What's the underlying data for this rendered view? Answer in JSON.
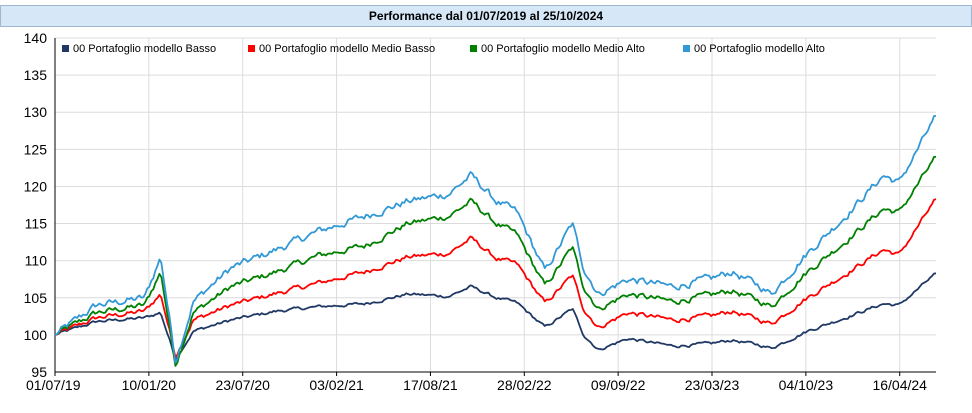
{
  "header": {
    "title": "Performance dal 01/07/2019 al 25/10/2024"
  },
  "chart_data": {
    "type": "line",
    "title": "Performance dal 01/07/2019 al 25/10/2024",
    "xlabel": "",
    "ylabel": "",
    "ylim": [
      95,
      140
    ],
    "yticks": [
      95,
      100,
      105,
      110,
      115,
      120,
      125,
      130,
      135,
      140
    ],
    "xtick_labels": [
      "01/07/19",
      "10/01/20",
      "23/07/20",
      "03/02/21",
      "17/08/21",
      "28/02/22",
      "09/09/22",
      "23/03/23",
      "04/10/23",
      "16/04/24"
    ],
    "grid": true,
    "legend_position": "top-left",
    "x": [
      "2019-07-01",
      "2019-10-01",
      "2020-01-15",
      "2020-02-19",
      "2020-03-23",
      "2020-05-01",
      "2020-07-23",
      "2020-11-01",
      "2021-02-03",
      "2021-05-15",
      "2021-08-17",
      "2021-11-15",
      "2022-01-04",
      "2022-02-28",
      "2022-04-15",
      "2022-06-16",
      "2022-08-15",
      "2022-09-09",
      "2022-10-12",
      "2022-12-15",
      "2023-03-23",
      "2023-06-15",
      "2023-08-01",
      "2023-10-04",
      "2023-10-27",
      "2024-01-15",
      "2024-04-16",
      "2024-07-01",
      "2024-08-05",
      "2024-10-25"
    ],
    "series": [
      {
        "name": "00 Portafoglio modello Basso",
        "color": "#1f3864",
        "values": [
          100,
          101.8,
          102.3,
          103.0,
          96.8,
          100.5,
          102.0,
          103.2,
          103.8,
          104.2,
          105.5,
          105.2,
          106.5,
          105.0,
          104.3,
          101.0,
          103.5,
          100.0,
          98.0,
          99.5,
          98.5,
          98.8,
          99.3,
          98.6,
          98.2,
          100.5,
          102.5,
          104.2,
          104.0,
          108.3
        ]
      },
      {
        "name": "00 Portafoglio modello Medio Basso",
        "color": "#ff0000",
        "values": [
          100,
          102.3,
          103.2,
          105.5,
          97.2,
          102.0,
          104.0,
          105.6,
          107.0,
          108.5,
          110.5,
          111.0,
          113.0,
          110.3,
          109.5,
          104.2,
          108.0,
          103.5,
          101.0,
          103.0,
          102.0,
          102.5,
          103.2,
          102.0,
          101.5,
          105.0,
          108.5,
          111.5,
          110.8,
          118.3
        ]
      },
      {
        "name": "00 Portafoglio modello Medio Alto",
        "color": "#008000",
        "values": [
          100,
          103.0,
          104.0,
          108.5,
          96.0,
          103.0,
          106.5,
          108.5,
          110.7,
          112.0,
          115.0,
          116.0,
          118.0,
          115.0,
          113.5,
          106.5,
          111.8,
          106.5,
          103.5,
          105.5,
          104.5,
          105.3,
          106.0,
          104.5,
          103.8,
          108.5,
          113.0,
          117.0,
          116.5,
          124.0
        ]
      },
      {
        "name": "00 Portafoglio modello Alto",
        "color": "#3399d6",
        "values": [
          100,
          104.0,
          105.0,
          110.5,
          96.5,
          104.5,
          109.0,
          111.5,
          114.0,
          116.0,
          118.0,
          119.0,
          121.5,
          118.0,
          116.5,
          108.5,
          115.0,
          109.0,
          105.5,
          107.5,
          106.5,
          107.5,
          108.5,
          106.5,
          105.5,
          111.0,
          116.5,
          121.5,
          120.5,
          129.5
        ]
      }
    ]
  }
}
